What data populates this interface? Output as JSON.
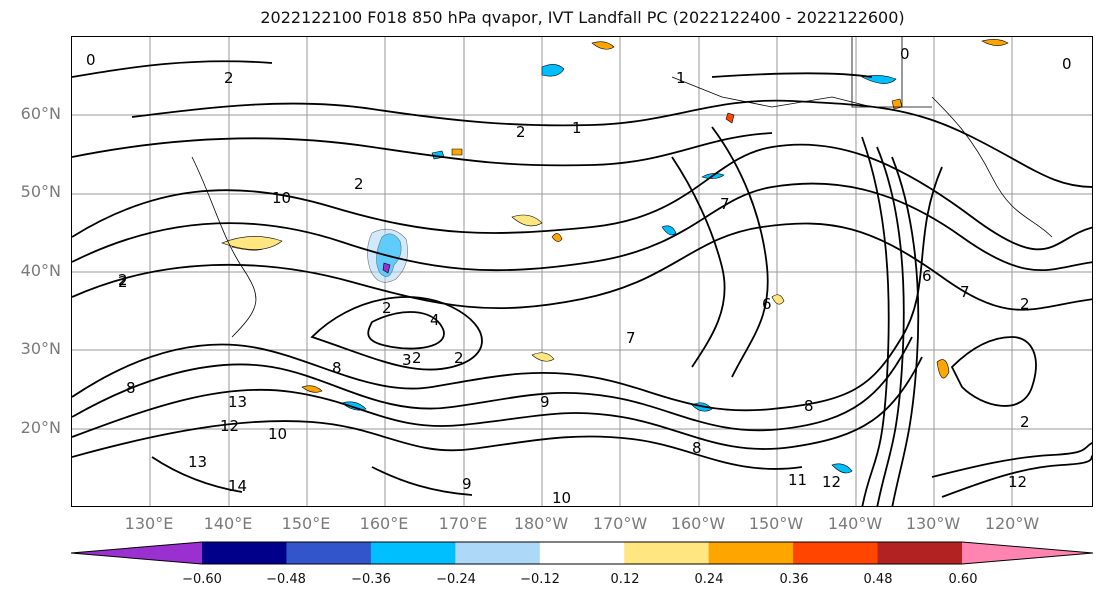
{
  "title": "2022122100 F018 850 hPa qvapor, IVT Landfall PC (2022122400 - 2022122600)",
  "lat_labels": [
    "60°N",
    "50°N",
    "40°N",
    "30°N",
    "20°N"
  ],
  "lon_labels": [
    "130°E",
    "140°E",
    "150°E",
    "160°E",
    "170°E",
    "180°W",
    "170°W",
    "160°W",
    "150°W",
    "140°W",
    "130°W",
    "120°W"
  ],
  "contour_labels": [
    "0",
    "0",
    "0",
    "2",
    "1",
    "2",
    "1",
    "2",
    "2",
    "10",
    "2",
    "2",
    "4",
    "2",
    "3",
    "7",
    "6",
    "6",
    "7",
    "7",
    "8",
    "9",
    "8",
    "8",
    "13",
    "12",
    "13",
    "14",
    "10",
    "9",
    "10",
    "11",
    "12",
    "8",
    "2",
    "12",
    "2",
    "2"
  ],
  "colorbar": {
    "colors": [
      "#9b30d0",
      "#00008b",
      "#3355cc",
      "#00bfff",
      "#add8f8",
      "#ffffff",
      "#ffe680",
      "#ffa500",
      "#ff4500",
      "#b22222",
      "#ff85b0"
    ],
    "ticks": [
      "−0.60",
      "−0.48",
      "−0.36",
      "−0.24",
      "−0.12",
      "0.12",
      "0.24",
      "0.36",
      "0.48",
      "0.60"
    ]
  }
}
